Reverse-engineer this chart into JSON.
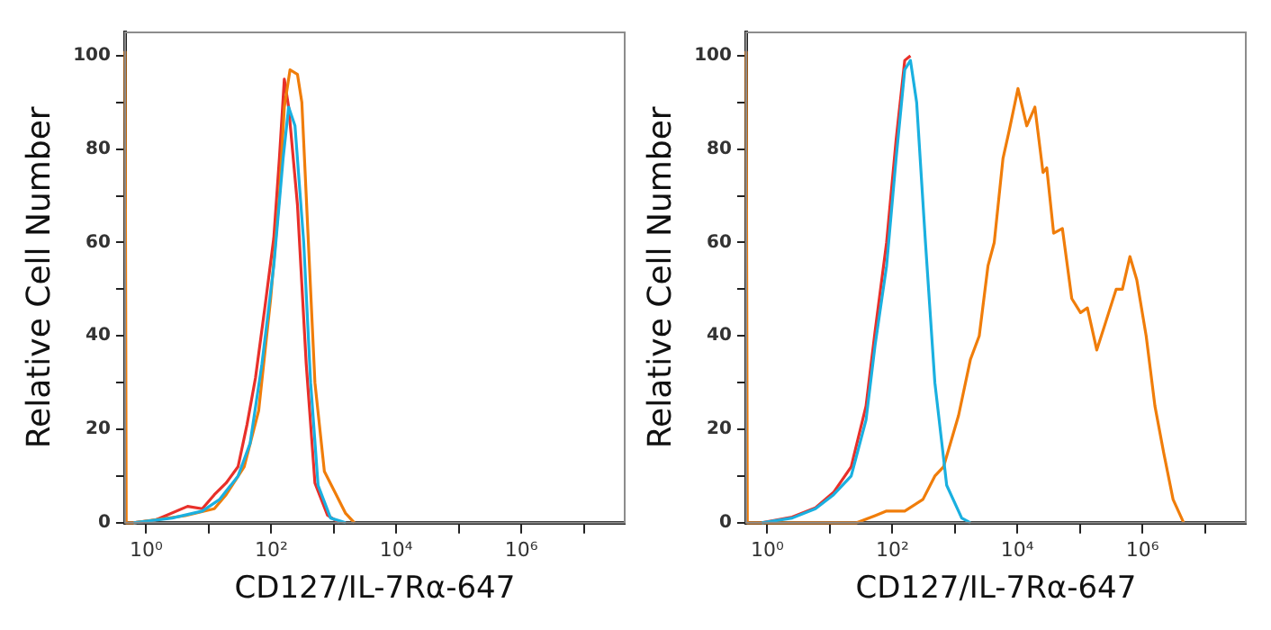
{
  "chart_data": [
    {
      "type": "line",
      "xlabel": "CD127/IL-7Rα-647",
      "ylabel": "Relative Cell Number",
      "log": "x",
      "grid": false,
      "legend": false,
      "marker": "none",
      "line_style": "solid",
      "xlim": [
        0.46,
        45000000
      ],
      "ylim": [
        0,
        105
      ],
      "xticks": [
        {
          "value": 1,
          "label": "10⁰"
        },
        {
          "value": 10,
          "label": null
        },
        {
          "value": 100,
          "label": "10²"
        },
        {
          "value": 1000,
          "label": null
        },
        {
          "value": 10000,
          "label": "10⁴"
        },
        {
          "value": 100000,
          "label": null
        },
        {
          "value": 1000000,
          "label": "10⁶"
        },
        {
          "value": 10000000,
          "label": null
        }
      ],
      "yticks": [
        0,
        {
          "value": 10,
          "label": null
        },
        20,
        {
          "value": 30,
          "label": null
        },
        40,
        {
          "value": 50,
          "label": null
        },
        60,
        {
          "value": 70,
          "label": null
        },
        80,
        {
          "value": 90,
          "label": null
        },
        100
      ],
      "series": [
        {
          "color": "#e8302a",
          "x": [
            0.63,
            1.36,
            4.6,
            7.9,
            12.3,
            19,
            29.5,
            41,
            56,
            79,
            110,
            135,
            162,
            190,
            263,
            363,
            500,
            794,
            1230
          ],
          "values": [
            0,
            0.5,
            3.5,
            3,
            6,
            8.5,
            12,
            21,
            31,
            46,
            61,
            78,
            95,
            89,
            68,
            34,
            8.5,
            1.6,
            0
          ]
        },
        {
          "color": "#f07d0a",
          "x": [
            0.46,
            0.48,
            0.63,
            4.2,
            12.3,
            19,
            37,
            63,
            98,
            135,
            162,
            200,
            263,
            309,
            363,
            500,
            708,
            1096,
            1549,
            2138
          ],
          "values": [
            101,
            0,
            0,
            1.5,
            3,
            6,
            12,
            24,
            48,
            70,
            89,
            97,
            96,
            90,
            70,
            30,
            11,
            6,
            2,
            0
          ]
        },
        {
          "color": "#1ab0e0",
          "x": [
            0.63,
            2.6,
            7.9,
            15,
            29.5,
            46,
            71,
            110,
            155,
            190,
            240,
            331,
            427,
            562,
            891,
            1549
          ],
          "values": [
            0,
            1,
            2.5,
            5,
            10,
            17,
            34,
            55,
            78,
            89,
            85,
            60,
            30,
            8,
            1,
            0
          ]
        }
      ]
    },
    {
      "type": "line",
      "xlabel": "CD127/IL-7Rα-647",
      "ylabel": "Relative Cell Number",
      "log": "x",
      "grid": false,
      "legend": false,
      "marker": "none",
      "line_style": "solid",
      "xlim": [
        0.46,
        45000000
      ],
      "ylim": [
        0,
        105
      ],
      "xticks": [
        {
          "value": 1,
          "label": "10⁰"
        },
        {
          "value": 10,
          "label": null
        },
        {
          "value": 100,
          "label": "10²"
        },
        {
          "value": 1000,
          "label": null
        },
        {
          "value": 10000,
          "label": "10⁴"
        },
        {
          "value": 100000,
          "label": null
        },
        {
          "value": 1000000,
          "label": "10⁶"
        },
        {
          "value": 10000000,
          "label": null
        }
      ],
      "yticks": [
        0,
        {
          "value": 10,
          "label": null
        },
        20,
        {
          "value": 30,
          "label": null
        },
        40,
        {
          "value": 50,
          "label": null
        },
        60,
        {
          "value": 70,
          "label": null
        },
        80,
        {
          "value": 90,
          "label": null
        },
        100
      ],
      "series": [
        {
          "color": "#e8302a",
          "x": [
            0.82,
            2.5,
            5.9,
            11.5,
            22,
            38,
            53,
            81,
            115,
            158,
            195
          ],
          "values": [
            0,
            1.2,
            3.2,
            6.5,
            12,
            25,
            41,
            60,
            82,
            99,
            100
          ]
        },
        {
          "color": "#f07d0a",
          "x": [
            0.46,
            0.48,
            27,
            53,
            81,
            158,
            309,
            479,
            661,
            1148,
            1778,
            2455,
            3388,
            4266,
            5888,
            7413,
            10233,
            14125,
            19055,
            25704,
            29512,
            38019,
            52481,
            74131,
            102329,
            131826,
            186209,
            245471,
            380189,
            478630,
            630957,
            812831,
            1148154,
            1584893,
            2187762,
            3090295,
            4570882
          ],
          "values": [
            101,
            0,
            0,
            1.5,
            2.5,
            2.5,
            5,
            10,
            12,
            23,
            35,
            40,
            55,
            60,
            78,
            84,
            93,
            85,
            89,
            75,
            76,
            62,
            63,
            48,
            45,
            46,
            37,
            42,
            50,
            50,
            57,
            52,
            40,
            25,
            15,
            5,
            0
          ]
        },
        {
          "color": "#1ab0e0",
          "x": [
            0.82,
            2.5,
            5.9,
            11.5,
            22,
            38,
            53,
            81,
            115,
            158,
            195,
            245,
            339,
            479,
            741,
            1288,
            1778
          ],
          "values": [
            0,
            1,
            3,
            6,
            10,
            22,
            38,
            55,
            78,
            97,
            99,
            90,
            60,
            30,
            8,
            1,
            0
          ]
        }
      ]
    }
  ]
}
